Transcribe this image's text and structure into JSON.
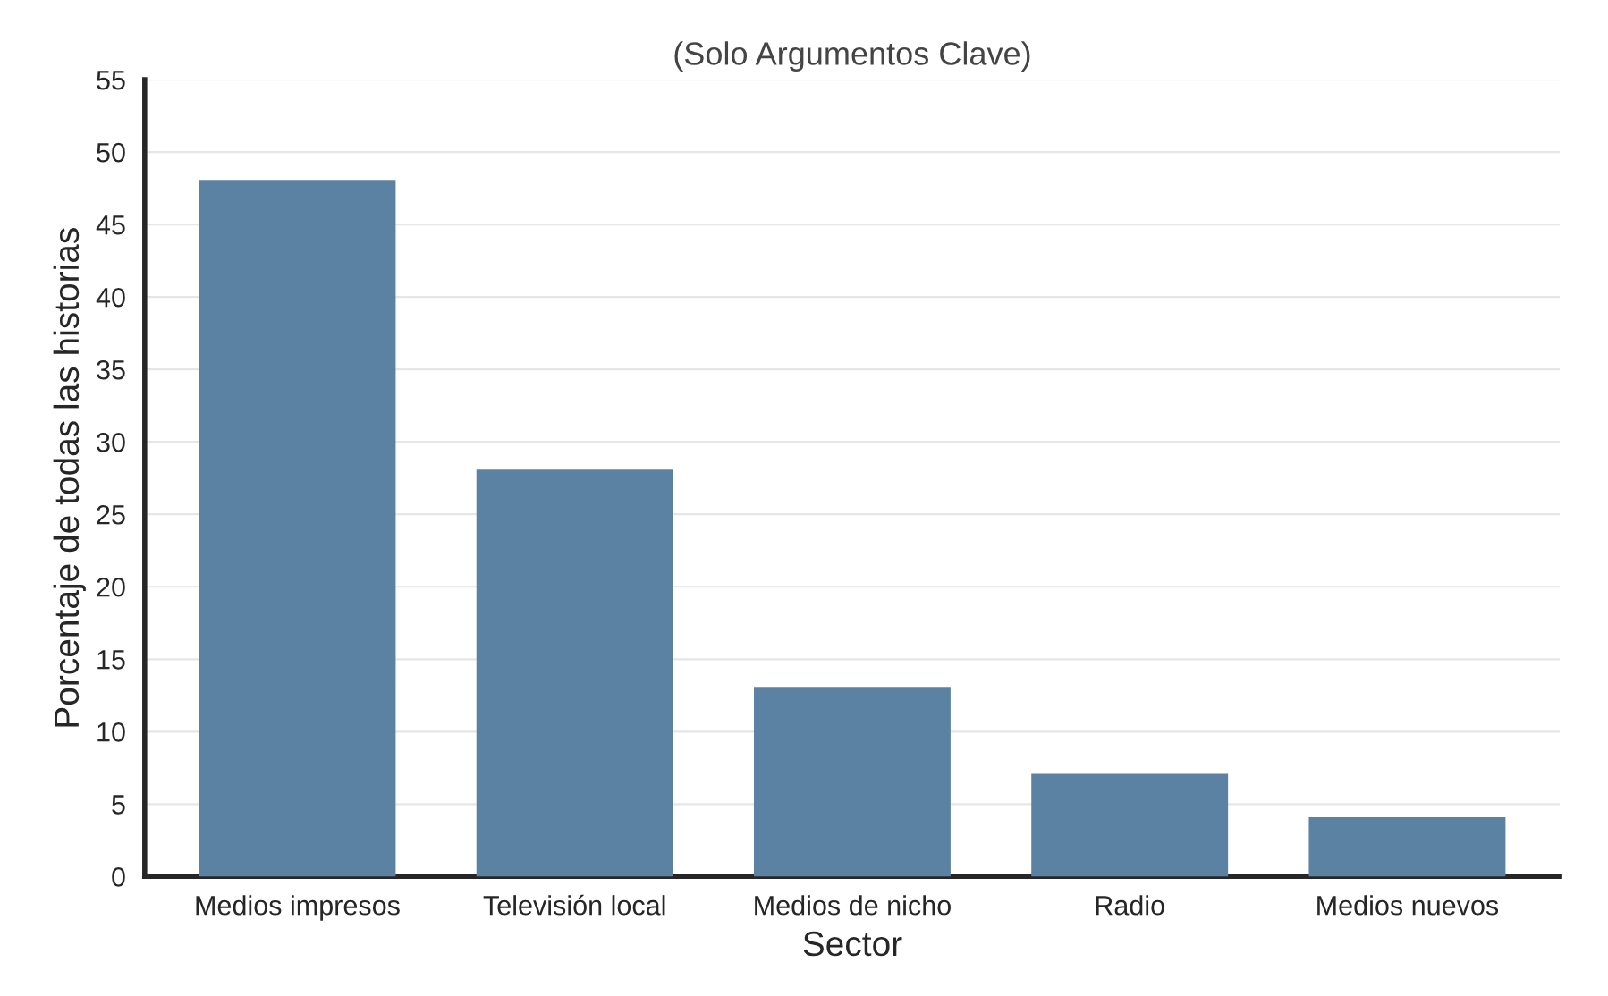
{
  "chart_data": {
    "type": "bar",
    "title": "(Solo Argumentos Clave)",
    "xlabel": "Sector",
    "ylabel": "Porcentaje de todas las historias",
    "categories": [
      "Medios impresos",
      "Televisión local",
      "Medios de nicho",
      "Radio",
      "Medios nuevos"
    ],
    "values": [
      48,
      28,
      13,
      7,
      4
    ],
    "color": "#5b82a3",
    "ylim": [
      0,
      55
    ],
    "yticks": [
      0,
      5,
      10,
      15,
      20,
      25,
      30,
      35,
      40,
      45,
      50,
      55
    ],
    "grid": "y"
  }
}
